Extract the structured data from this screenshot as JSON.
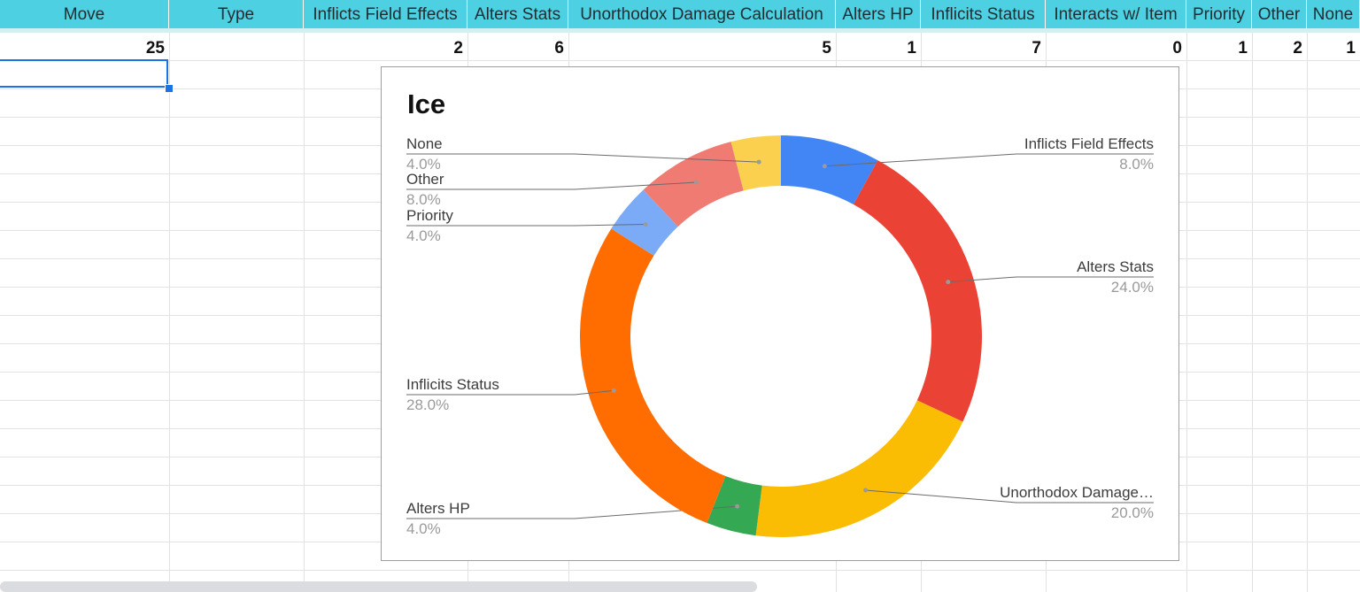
{
  "sheet": {
    "columns": [
      {
        "name": "Move",
        "value": "25"
      },
      {
        "name": "Type",
        "value": ""
      },
      {
        "name": "Inflicts Field Effects",
        "value": "2"
      },
      {
        "name": "Alters Stats",
        "value": "6"
      },
      {
        "name": "Unorthodox Damage Calculation",
        "value": "5"
      },
      {
        "name": "Alters HP",
        "value": "1"
      },
      {
        "name": "Inflicits Status",
        "value": "7"
      },
      {
        "name": "Interacts w/ Item",
        "value": "0"
      },
      {
        "name": "Priority",
        "value": "1"
      },
      {
        "name": "Other",
        "value": "2"
      },
      {
        "name": "None",
        "value": "1"
      }
    ],
    "header_color": "#4dd0e1",
    "selection_color": "#1a73e8"
  },
  "chart_data": {
    "type": "pie",
    "donut": true,
    "title": "Ice",
    "legend": "labels",
    "slices": [
      {
        "label": "Inflicts Field Effects",
        "display_label": "Inflicts Field Effects",
        "value": 2,
        "percent": "8.0%",
        "color": "#4285f4"
      },
      {
        "label": "Alters Stats",
        "display_label": "Alters Stats",
        "value": 6,
        "percent": "24.0%",
        "color": "#ea4335"
      },
      {
        "label": "Unorthodox Damage Calculation",
        "display_label": "Unorthodox Damage…",
        "value": 5,
        "percent": "20.0%",
        "color": "#fbbc04"
      },
      {
        "label": "Alters HP",
        "display_label": "Alters HP",
        "value": 1,
        "percent": "4.0%",
        "color": "#34a853"
      },
      {
        "label": "Inflicits Status",
        "display_label": "Inflicits Status",
        "value": 7,
        "percent": "28.0%",
        "color": "#ff6d01"
      },
      {
        "label": "Priority",
        "display_label": "Priority",
        "value": 1,
        "percent": "4.0%",
        "color": "#7baaf7"
      },
      {
        "label": "Other",
        "display_label": "Other",
        "value": 2,
        "percent": "8.0%",
        "color": "#f07b72"
      },
      {
        "label": "None",
        "display_label": "None",
        "value": 1,
        "percent": "4.0%",
        "color": "#fcd04f"
      }
    ]
  }
}
